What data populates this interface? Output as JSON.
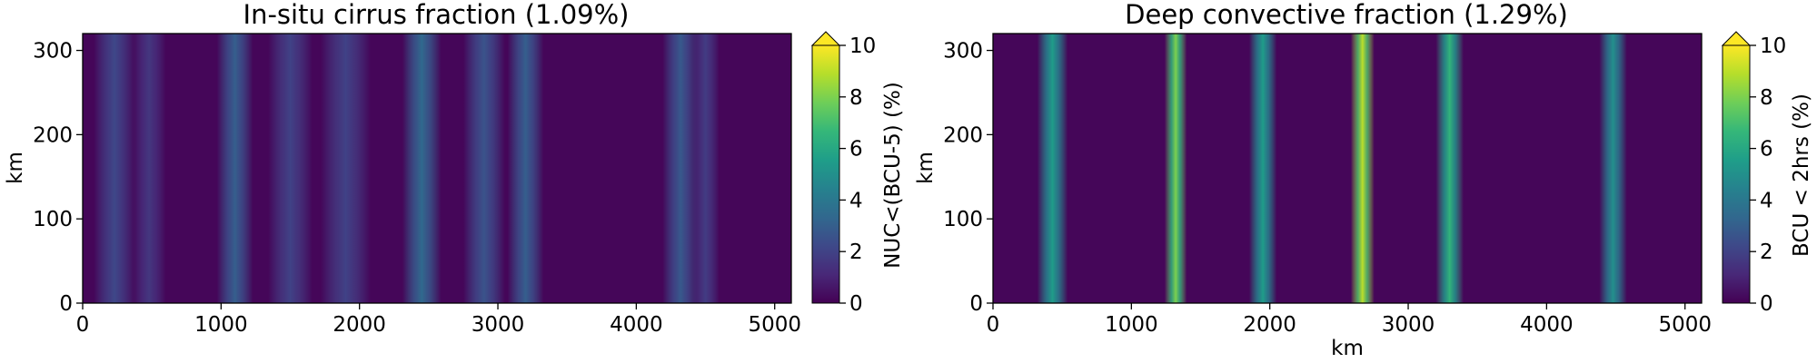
{
  "colors": {
    "viridis": [
      "#440154",
      "#482878",
      "#3e4989",
      "#31688e",
      "#26828e",
      "#1f9e89",
      "#35b779",
      "#6ece58",
      "#b5de2b",
      "#fde725"
    ]
  },
  "chart_data": [
    {
      "type": "heatmap",
      "title": "In-situ cirrus fraction (1.09%)",
      "xlabel": "",
      "ylabel": "km",
      "xlim": [
        0,
        5120
      ],
      "ylim": [
        0,
        320
      ],
      "xticks": [
        "0",
        "1000",
        "2000",
        "3000",
        "4000",
        "5000"
      ],
      "yticks": [
        "0",
        "100",
        "200",
        "300"
      ],
      "colorbar": {
        "label": "NUC<(BCU-5) (%)",
        "range": [
          0,
          10
        ],
        "extend": "max",
        "ticks": [
          "0",
          "2",
          "4",
          "6",
          "8",
          "10"
        ]
      },
      "bands": [
        {
          "x": 230,
          "width": 150,
          "peak": 2.2
        },
        {
          "x": 480,
          "width": 120,
          "peak": 1.6
        },
        {
          "x": 1100,
          "width": 130,
          "peak": 3.0
        },
        {
          "x": 1500,
          "width": 160,
          "peak": 2.0
        },
        {
          "x": 1900,
          "width": 180,
          "peak": 2.0
        },
        {
          "x": 2450,
          "width": 140,
          "peak": 3.4
        },
        {
          "x": 2900,
          "width": 150,
          "peak": 2.6
        },
        {
          "x": 3200,
          "width": 130,
          "peak": 3.0
        },
        {
          "x": 4320,
          "width": 130,
          "peak": 2.8
        },
        {
          "x": 4500,
          "width": 100,
          "peak": 1.8
        }
      ]
    },
    {
      "type": "heatmap",
      "title": "Deep convective fraction (1.29%)",
      "xlabel": "km",
      "ylabel": "km",
      "xlim": [
        0,
        5120
      ],
      "ylim": [
        0,
        320
      ],
      "xticks": [
        "0",
        "1000",
        "2000",
        "3000",
        "4000",
        "5000"
      ],
      "yticks": [
        "0",
        "100",
        "200",
        "300"
      ],
      "colorbar": {
        "label": "BCU < 2hrs (%)",
        "range": [
          0,
          10
        ],
        "extend": "max",
        "ticks": [
          "0",
          "2",
          "4",
          "6",
          "8",
          "10"
        ]
      },
      "bands": [
        {
          "x": 430,
          "width": 110,
          "peak": 5.5
        },
        {
          "x": 1320,
          "width": 80,
          "peak": 8.0
        },
        {
          "x": 1950,
          "width": 100,
          "peak": 5.5
        },
        {
          "x": 2670,
          "width": 85,
          "peak": 9.0
        },
        {
          "x": 3300,
          "width": 100,
          "peak": 6.5
        },
        {
          "x": 4480,
          "width": 100,
          "peak": 5.0
        }
      ]
    }
  ]
}
